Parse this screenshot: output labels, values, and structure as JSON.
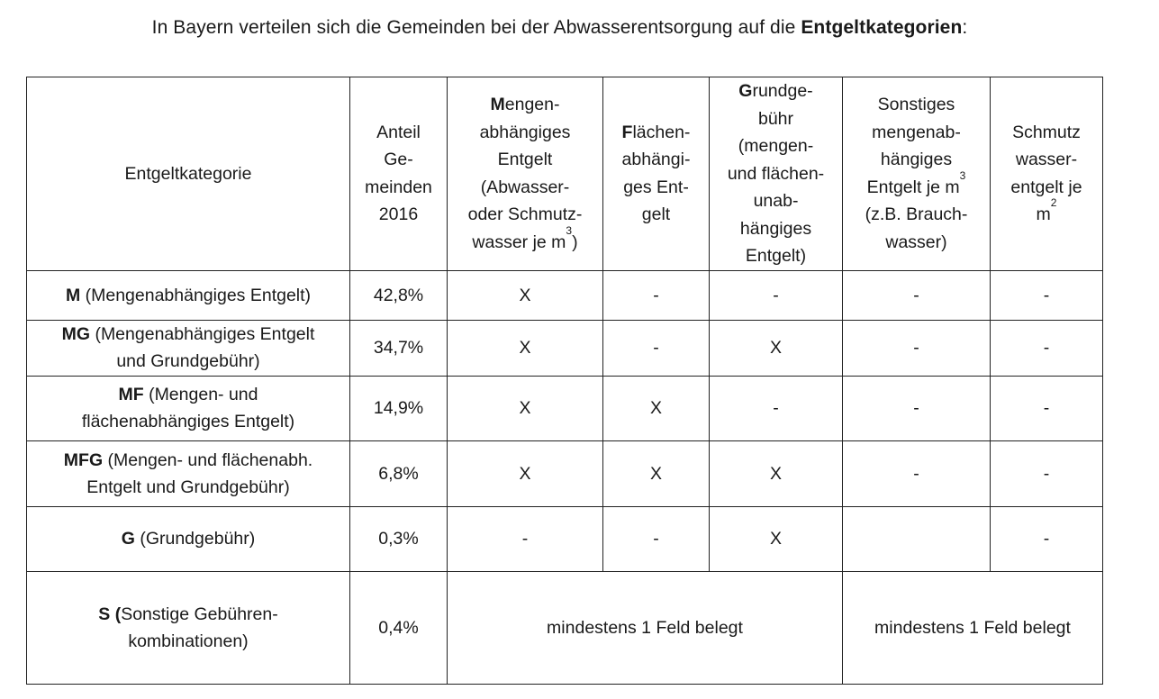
{
  "heading": {
    "prefix": "In Bayern verteilen sich die Gemeinden bei der Abwasserentsorgung auf die ",
    "bold": "Entgeltkategorien",
    "suffix": ":"
  },
  "table": {
    "headers": {
      "category": "Entgeltkategorie",
      "share": [
        "Anteil",
        "Ge-",
        "meinden",
        "2016"
      ],
      "volume": {
        "initial": "M",
        "l1": "engen-",
        "l2": "abhängiges",
        "l3": "Entgelt",
        "l4": "(Abwasser-",
        "l5": "oder Schmutz-",
        "l6": "wasser je m",
        "sup": "3",
        "close": ")"
      },
      "area": {
        "initial": "F",
        "l1": "lächen-",
        "l2": "abhängi-",
        "l3": "ges Ent-",
        "l4": "gelt"
      },
      "base": {
        "initial": "G",
        "l1": "rundge-",
        "l2": "bühr",
        "l3": "(mengen-",
        "l4": "und flächen-",
        "l5": "unab-",
        "l6": "hängiges",
        "l7": "Entgelt)"
      },
      "other": {
        "l1": "Sonstiges",
        "l2": "mengenab-",
        "l3": "hängiges",
        "l4": "Entgelt je m",
        "sup": "3",
        "l5": "(z.B. Brauch-",
        "l6": "wasser)"
      },
      "dirty": {
        "l1": "Schmutz",
        "l2": "wasser-",
        "l3": "entgelt je",
        "l4": "m",
        "sup": "2"
      }
    },
    "rows": [
      {
        "code": "M",
        "desc1": " (Mengenabhängiges Entgelt)",
        "desc2": "",
        "share": "42,8%",
        "c1": "X",
        "c2": "-",
        "c3": "-",
        "c4": "-",
        "c5": "-"
      },
      {
        "code": "MG",
        "desc1": " (Mengenabhängiges Entgelt",
        "desc2": "und  Grundgebühr)",
        "share": "34,7%",
        "c1": "X",
        "c2": "-",
        "c3": "X",
        "c4": "-",
        "c5": "-"
      },
      {
        "code": "MF",
        "desc1": " (Mengen- und",
        "desc2": "flächenabhängiges Entgelt)",
        "share": "14,9%",
        "c1": "X",
        "c2": "X",
        "c3": "-",
        "c4": "-",
        "c5": "-"
      },
      {
        "code": "MFG",
        "desc1": " (Mengen- und flächenabh.",
        "desc2": "Entgelt und Grundgebühr)",
        "share": "6,8%",
        "c1": "X",
        "c2": "X",
        "c3": "X",
        "c4": "-",
        "c5": "-"
      },
      {
        "code": "G",
        "desc1": " (Grundgebühr)",
        "desc2": "",
        "share": "0,3%",
        "c1": "-",
        "c2": "-",
        "c3": "X",
        "c4": "",
        "c5": "-"
      }
    ],
    "last_row": {
      "code": "S (",
      "desc1": "Sonstige Gebühren-",
      "desc2": "kombinationen)",
      "share": "0,4%",
      "span_left": "mindestens 1 Feld belegt",
      "span_right": "mindestens 1 Feld belegt"
    }
  }
}
